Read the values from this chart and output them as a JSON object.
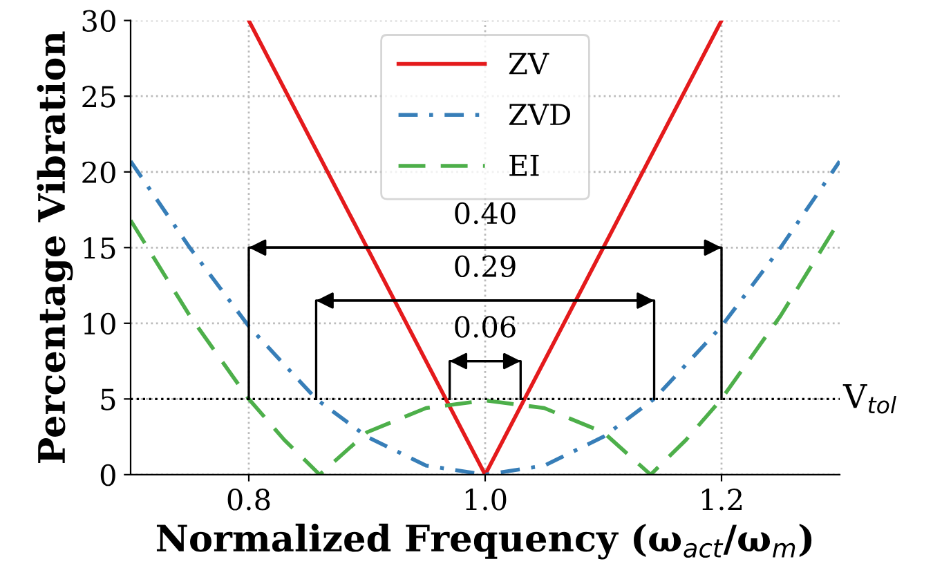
{
  "chart_data": {
    "type": "line",
    "xlabel": "Normalized Frequency (ω$_{act}$/ω$_{m}$)",
    "ylabel": "Percentage Vibration",
    "xlim": [
      0.7,
      1.3
    ],
    "xticks": [
      0.8,
      {
        "value": 1.0,
        "label": "1.0"
      },
      1.2
    ],
    "ylim": [
      0,
      30
    ],
    "yticks": [
      0,
      5,
      10,
      15,
      20,
      25,
      30
    ],
    "grid": true,
    "legend": "top",
    "series": [
      {
        "name": "ZV",
        "color": "#e41a1c",
        "line_style": "solid",
        "x": [
          0.8,
          1.0,
          1.2
        ],
        "values": [
          30,
          0,
          30
        ]
      },
      {
        "name": "ZVD",
        "color": "#377eb8",
        "line_style": "dashdot",
        "x": [
          0.7,
          0.75,
          0.8,
          0.857,
          0.9,
          0.95,
          1.0,
          1.05,
          1.1,
          1.143,
          1.2,
          1.25,
          1.3
        ],
        "values": [
          20.7,
          15,
          9.8,
          5,
          2.5,
          0.6,
          0,
          0.6,
          2.5,
          5,
          9.8,
          15,
          20.7
        ]
      },
      {
        "name": "EI",
        "color": "#4daf4a",
        "line_style": "dashed",
        "x": [
          0.7,
          0.75,
          0.8,
          0.83,
          0.86,
          0.9,
          0.95,
          1.0,
          1.05,
          1.1,
          1.14,
          1.17,
          1.2,
          1.25,
          1.3
        ],
        "values": [
          16.8,
          10.5,
          5,
          2.3,
          0,
          2.8,
          4.4,
          4.9,
          4.4,
          2.8,
          0,
          2.3,
          5,
          10.5,
          16.8
        ]
      },
      {
        "color": "#000000",
        "line_style": "solid",
        "x": [
          0.8,
          0.8,
          1.2,
          1.2
        ],
        "values": [
          5,
          15,
          15,
          5
        ]
      },
      {
        "color": "#000000",
        "line_style": "solid",
        "x": [
          0.857,
          0.857,
          1.143,
          1.143
        ],
        "values": [
          5,
          11.5,
          11.5,
          5
        ]
      },
      {
        "color": "#000000",
        "line_style": "solid",
        "x": [
          0.97,
          0.97,
          1.03,
          1.03
        ],
        "values": [
          5,
          7.5,
          7.5,
          5
        ]
      }
    ],
    "ref_lines": [
      {
        "axis": "y",
        "value": 5,
        "label": "V$_{tol}$",
        "color": "#000000",
        "line_style": "dotted"
      }
    ],
    "annotations": [
      "0.40",
      "0.29",
      "0.06"
    ]
  }
}
